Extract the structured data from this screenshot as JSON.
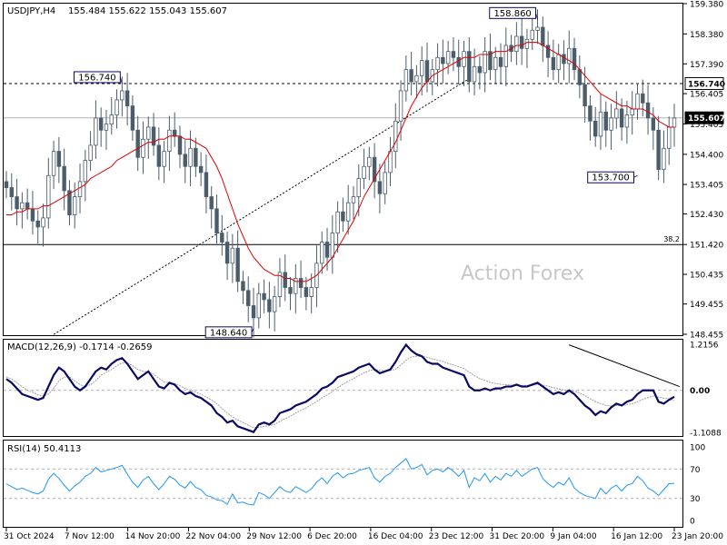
{
  "chart_data": [
    {
      "type": "candlestick",
      "panel": "price",
      "title": "USDJPY,H4",
      "ohlc_header": "155.484 155.622 155.043 155.607",
      "ylim": [
        148.455,
        159.38
      ],
      "y_ticks": [
        "159.380",
        "158.380",
        "157.390",
        "156.405",
        "155.405",
        "154.400",
        "153.405",
        "152.430",
        "151.420",
        "150.435",
        "149.455",
        "148.455"
      ],
      "hlines": [
        {
          "value": 156.74,
          "style": "dashed",
          "label": "156.740"
        },
        {
          "value": 155.607,
          "style": "solid-gray",
          "label": "155.607"
        },
        {
          "value": 151.42,
          "style": "solid",
          "label": "38.2"
        }
      ],
      "annotations": [
        {
          "label": "158.860",
          "x_index": 101,
          "value": 158.86
        },
        {
          "label": "156.740",
          "x_index": 22,
          "value": 156.74
        },
        {
          "label": "148.640",
          "x_index": 47,
          "value": 148.64
        },
        {
          "label": "153.700",
          "x_index": 120,
          "value": 153.7
        }
      ],
      "trendline": [
        {
          "x_index": 9,
          "value": 148.45
        },
        {
          "x_index": 88,
          "value": 156.9
        }
      ],
      "watermark": "Action Forex",
      "series": [
        {
          "name": "close",
          "values": [
            153.3,
            153.0,
            152.6,
            152.8,
            152.6,
            152.2,
            152.0,
            152.3,
            153.7,
            154.5,
            154.0,
            153.2,
            152.4,
            153.0,
            153.5,
            154.2,
            154.7,
            155.6,
            155.2,
            155.4,
            155.7,
            156.2,
            156.5,
            156.0,
            155.2,
            154.3,
            154.9,
            155.3,
            154.7,
            154.0,
            154.5,
            155.2,
            155.0,
            154.4,
            154.0,
            154.6,
            154.0,
            153.8,
            153.0,
            152.6,
            151.8,
            151.5,
            150.8,
            151.3,
            150.2,
            149.9,
            149.4,
            149.0,
            149.8,
            149.6,
            149.2,
            149.7,
            150.5,
            150.0,
            149.8,
            150.3,
            150.0,
            149.7,
            150.0,
            150.8,
            151.5,
            151.0,
            151.8,
            152.5,
            152.2,
            152.8,
            153.0,
            153.6,
            154.0,
            154.3,
            153.5,
            153.1,
            153.8,
            154.5,
            155.5,
            156.5,
            157.2,
            156.8,
            157.0,
            157.5,
            156.8,
            157.2,
            157.6,
            157.4,
            157.8,
            157.6,
            157.3,
            157.8,
            156.8,
            157.3,
            157.1,
            157.8,
            157.2,
            157.6,
            157.3,
            158.0,
            157.8,
            158.3,
            157.9,
            158.2,
            158.5,
            158.6,
            158.0,
            157.6,
            157.2,
            157.7,
            157.4,
            157.9,
            157.2,
            156.7,
            156.0,
            155.5,
            155.0,
            155.8,
            155.2,
            155.6,
            155.9,
            155.3,
            155.7,
            155.9,
            156.4,
            156.1,
            155.6,
            155.2,
            153.9,
            154.6,
            155.3,
            155.6
          ]
        },
        {
          "name": "MA",
          "values": [
            152.4,
            152.4,
            152.5,
            152.5,
            152.6,
            152.6,
            152.6,
            152.7,
            152.7,
            152.8,
            152.9,
            153.0,
            153.1,
            153.2,
            153.3,
            153.4,
            153.6,
            153.7,
            153.8,
            153.9,
            154.0,
            154.2,
            154.3,
            154.4,
            154.5,
            154.6,
            154.7,
            154.8,
            154.8,
            154.9,
            154.9,
            155.0,
            155.0,
            155.0,
            154.9,
            154.9,
            154.8,
            154.7,
            154.6,
            154.3,
            154.0,
            153.6,
            153.1,
            152.6,
            152.1,
            151.7,
            151.3,
            151.0,
            150.8,
            150.6,
            150.5,
            150.4,
            150.4,
            150.3,
            150.3,
            150.2,
            150.2,
            150.2,
            150.3,
            150.4,
            150.6,
            150.8,
            151.0,
            151.3,
            151.6,
            151.9,
            152.2,
            152.6,
            153.0,
            153.3,
            153.6,
            153.9,
            154.2,
            154.5,
            154.8,
            155.2,
            155.6,
            156.0,
            156.3,
            156.6,
            156.8,
            157.0,
            157.1,
            157.2,
            157.3,
            157.4,
            157.5,
            157.6,
            157.6,
            157.6,
            157.7,
            157.7,
            157.7,
            157.8,
            157.8,
            157.8,
            157.9,
            158.0,
            158.0,
            158.1,
            158.1,
            158.1,
            158.0,
            157.9,
            157.8,
            157.7,
            157.6,
            157.5,
            157.4,
            157.2,
            157.0,
            156.8,
            156.6,
            156.4,
            156.3,
            156.2,
            156.1,
            156.0,
            156.0,
            155.9,
            155.9,
            155.9,
            155.8,
            155.7,
            155.5,
            155.4,
            155.3,
            155.3
          ]
        }
      ]
    },
    {
      "type": "line",
      "panel": "macd",
      "title": "MACD(12,26,9) -0.1714 -0.2659",
      "ylim": [
        -1.1088,
        1.2156
      ],
      "y_ticks": [
        "1.2156",
        "0.00",
        "-1.1088"
      ],
      "zero_label": "0.00",
      "trendline": [
        {
          "x_index": 107,
          "value": 1.2
        },
        {
          "x_index": 128,
          "value": 0.1
        }
      ],
      "series": [
        {
          "name": "MACD",
          "values": [
            0.3,
            0.2,
            0.05,
            -0.1,
            -0.15,
            -0.2,
            -0.25,
            -0.2,
            0.1,
            0.4,
            0.6,
            0.5,
            0.3,
            0.1,
            0.0,
            0.1,
            0.3,
            0.5,
            0.6,
            0.55,
            0.7,
            0.8,
            0.85,
            0.7,
            0.5,
            0.3,
            0.4,
            0.5,
            0.3,
            0.1,
            0.05,
            0.2,
            0.15,
            0.0,
            -0.1,
            -0.05,
            -0.15,
            -0.2,
            -0.3,
            -0.4,
            -0.6,
            -0.7,
            -0.85,
            -0.8,
            -0.95,
            -1.0,
            -1.05,
            -1.1,
            -0.9,
            -0.85,
            -0.9,
            -0.8,
            -0.6,
            -0.55,
            -0.5,
            -0.4,
            -0.35,
            -0.3,
            -0.2,
            -0.1,
            0.05,
            0.1,
            0.2,
            0.35,
            0.4,
            0.45,
            0.5,
            0.6,
            0.65,
            0.7,
            0.55,
            0.45,
            0.5,
            0.55,
            0.75,
            1.0,
            1.2,
            1.05,
            0.95,
            0.9,
            0.75,
            0.7,
            0.7,
            0.6,
            0.55,
            0.5,
            0.45,
            0.4,
            0.1,
            0.0,
            0.0,
            0.05,
            0.0,
            0.05,
            0.05,
            0.1,
            0.1,
            0.15,
            0.1,
            0.1,
            0.15,
            0.2,
            0.1,
            0.0,
            -0.1,
            -0.05,
            -0.1,
            0.0,
            -0.1,
            -0.25,
            -0.4,
            -0.5,
            -0.65,
            -0.55,
            -0.6,
            -0.45,
            -0.35,
            -0.4,
            -0.3,
            -0.25,
            -0.1,
            0.0,
            0.0,
            0.0,
            -0.3,
            -0.35,
            -0.25,
            -0.17
          ]
        },
        {
          "name": "Signal",
          "values": [
            0.35,
            0.3,
            0.2,
            0.1,
            0.0,
            -0.05,
            -0.12,
            -0.15,
            -0.1,
            0.05,
            0.25,
            0.35,
            0.35,
            0.25,
            0.15,
            0.1,
            0.15,
            0.25,
            0.4,
            0.48,
            0.55,
            0.65,
            0.72,
            0.72,
            0.65,
            0.55,
            0.5,
            0.48,
            0.42,
            0.32,
            0.22,
            0.2,
            0.18,
            0.12,
            0.05,
            0.0,
            -0.05,
            -0.1,
            -0.18,
            -0.25,
            -0.35,
            -0.48,
            -0.6,
            -0.7,
            -0.78,
            -0.85,
            -0.92,
            -0.98,
            -0.98,
            -0.95,
            -0.93,
            -0.9,
            -0.82,
            -0.75,
            -0.68,
            -0.6,
            -0.53,
            -0.46,
            -0.38,
            -0.3,
            -0.2,
            -0.12,
            -0.03,
            0.07,
            0.16,
            0.24,
            0.31,
            0.39,
            0.46,
            0.52,
            0.55,
            0.53,
            0.52,
            0.52,
            0.56,
            0.67,
            0.8,
            0.88,
            0.9,
            0.9,
            0.87,
            0.83,
            0.8,
            0.76,
            0.71,
            0.67,
            0.62,
            0.58,
            0.48,
            0.39,
            0.31,
            0.26,
            0.21,
            0.18,
            0.16,
            0.15,
            0.14,
            0.14,
            0.13,
            0.13,
            0.13,
            0.15,
            0.14,
            0.11,
            0.07,
            0.04,
            0.01,
            0.0,
            -0.02,
            -0.07,
            -0.14,
            -0.22,
            -0.3,
            -0.35,
            -0.4,
            -0.41,
            -0.4,
            -0.4,
            -0.38,
            -0.35,
            -0.3,
            -0.24,
            -0.19,
            -0.15,
            -0.18,
            -0.21,
            -0.22,
            -0.27
          ]
        }
      ]
    },
    {
      "type": "line",
      "panel": "rsi",
      "title": "RSI(14) 50.4113",
      "ylim": [
        0,
        100
      ],
      "y_ticks": [
        "100",
        "70",
        "30",
        "0"
      ],
      "levels": [
        70,
        30
      ],
      "series": [
        {
          "name": "RSI",
          "values": [
            50,
            46,
            42,
            44,
            41,
            38,
            36,
            40,
            56,
            64,
            57,
            48,
            40,
            47,
            52,
            60,
            64,
            72,
            66,
            68,
            70,
            72,
            75,
            63,
            52,
            45,
            55,
            60,
            50,
            42,
            50,
            60,
            56,
            48,
            44,
            53,
            45,
            42,
            34,
            32,
            28,
            27,
            22,
            36,
            24,
            25,
            22,
            21,
            38,
            35,
            30,
            38,
            46,
            40,
            38,
            46,
            42,
            38,
            43,
            52,
            58,
            50,
            60,
            65,
            58,
            63,
            64,
            68,
            70,
            72,
            58,
            52,
            60,
            64,
            72,
            78,
            84,
            70,
            72,
            76,
            62,
            68,
            70,
            66,
            72,
            67,
            60,
            68,
            45,
            58,
            54,
            64,
            52,
            60,
            55,
            64,
            60,
            68,
            60,
            65,
            70,
            72,
            57,
            50,
            45,
            52,
            48,
            58,
            44,
            38,
            34,
            32,
            30,
            44,
            36,
            44,
            48,
            40,
            48,
            50,
            60,
            54,
            44,
            40,
            34,
            42,
            50,
            50.4
          ]
        }
      ]
    }
  ],
  "x_axis": {
    "labels": [
      "31 Oct 2024",
      "7 Nov 12:00",
      "14 Nov 20:00",
      "22 Nov 04:00",
      "29 Nov 12:00",
      "6 Dec 20:00",
      "16 Dec 04:00",
      "23 Dec 12:00",
      "31 Dec 20:00",
      "9 Jan 04:00",
      "16 Jan 12:00",
      "23 Jan 20:00"
    ],
    "label_index": [
      0,
      16,
      32,
      48,
      64,
      80,
      96,
      112,
      128,
      144,
      160,
      176
    ]
  },
  "colors": {
    "candle": "#4b5d6b",
    "ma": "#e00000",
    "macd": "#0a0a64",
    "signal": "#a0a0a0",
    "rsi": "#2196f3",
    "grid_text": "#000000",
    "trendline": "#000000",
    "watermark": "#c8c8c8",
    "label_border": "#0a0a64"
  }
}
